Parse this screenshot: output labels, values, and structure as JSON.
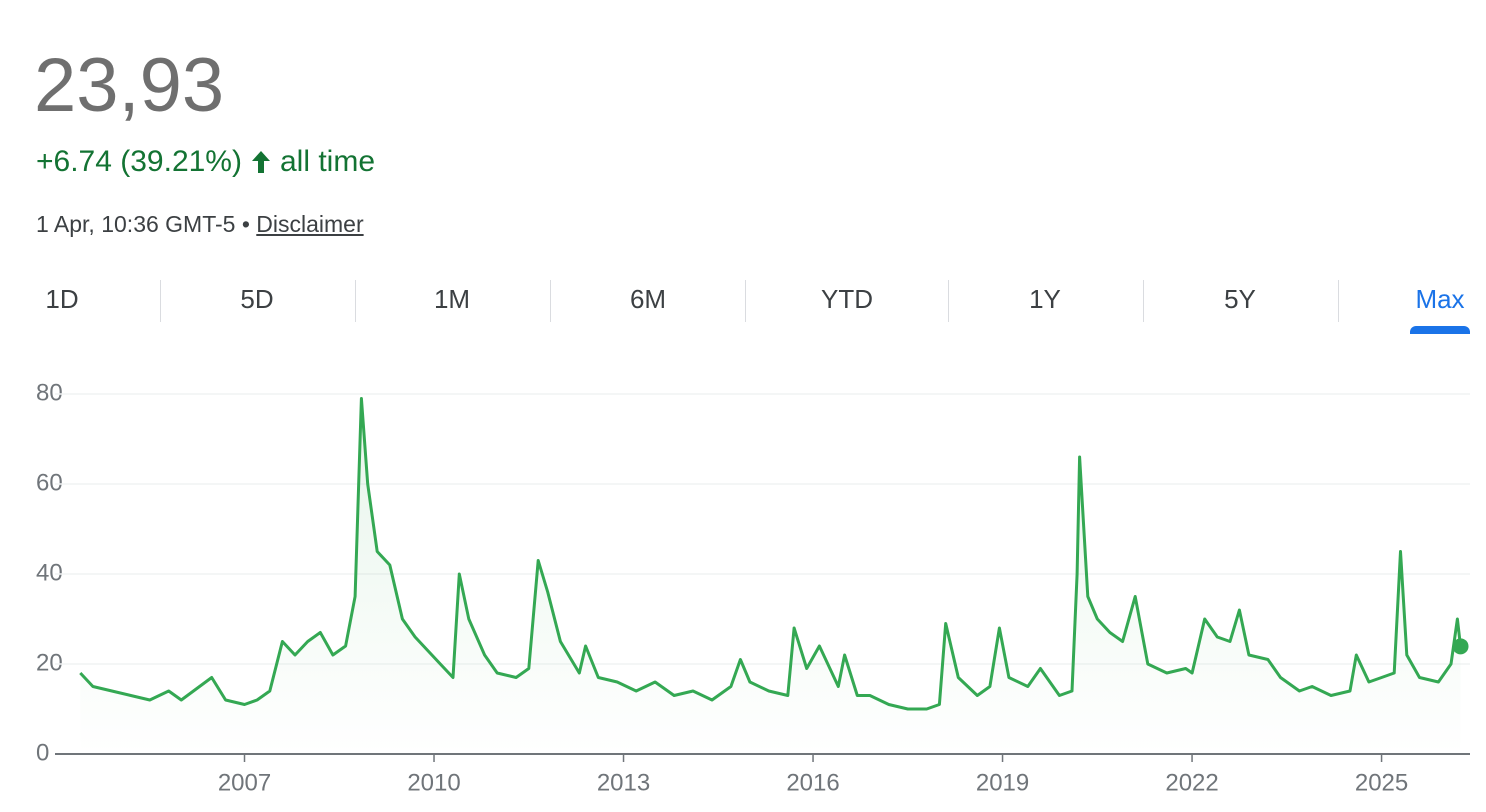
{
  "header": {
    "price": "23,93",
    "change": "+6.74 (39.21%)",
    "period": "all time",
    "timestamp": "1 Apr, 10:36 GMT-5 •",
    "disclaimer": "Disclaimer"
  },
  "tabs": {
    "items": [
      "1D",
      "5D",
      "1M",
      "6M",
      "YTD",
      "1Y",
      "5Y",
      "Max"
    ],
    "active": 7
  },
  "chart_data": {
    "type": "line",
    "color": "#34a853",
    "x": [
      2004.4,
      2004.6,
      2004.9,
      2005.2,
      2005.5,
      2005.8,
      2006.0,
      2006.48,
      2006.7,
      2007.0,
      2007.2,
      2007.4,
      2007.6,
      2007.8,
      2008.0,
      2008.2,
      2008.4,
      2008.6,
      2008.75,
      2008.85,
      2008.95,
      2009.1,
      2009.3,
      2009.5,
      2009.7,
      2009.9,
      2010.1,
      2010.3,
      2010.4,
      2010.55,
      2010.8,
      2011.0,
      2011.3,
      2011.5,
      2011.65,
      2011.8,
      2012.0,
      2012.3,
      2012.4,
      2012.6,
      2012.9,
      2013.2,
      2013.5,
      2013.8,
      2014.1,
      2014.4,
      2014.7,
      2014.85,
      2015.0,
      2015.3,
      2015.6,
      2015.7,
      2015.9,
      2016.1,
      2016.4,
      2016.5,
      2016.7,
      2016.9,
      2017.2,
      2017.5,
      2017.8,
      2018.0,
      2018.1,
      2018.3,
      2018.6,
      2018.8,
      2018.95,
      2019.1,
      2019.4,
      2019.6,
      2019.9,
      2020.1,
      2020.18,
      2020.22,
      2020.35,
      2020.5,
      2020.7,
      2020.9,
      2021.1,
      2021.3,
      2021.6,
      2021.9,
      2022.0,
      2022.2,
      2022.4,
      2022.6,
      2022.75,
      2022.9,
      2023.2,
      2023.4,
      2023.7,
      2023.9,
      2024.2,
      2024.5,
      2024.6,
      2024.8,
      2025.0,
      2025.2,
      2025.3,
      2025.4,
      2025.6,
      2025.9,
      2026.1,
      2026.2,
      2026.25
    ],
    "values": [
      18,
      15,
      14,
      13,
      12,
      14,
      12,
      17,
      12,
      11,
      12,
      14,
      25,
      22,
      25,
      27,
      22,
      24,
      35,
      79,
      60,
      45,
      42,
      30,
      26,
      23,
      20,
      17,
      40,
      30,
      22,
      18,
      17,
      19,
      43,
      36,
      25,
      18,
      24,
      17,
      16,
      14,
      16,
      13,
      14,
      12,
      15,
      21,
      16,
      14,
      13,
      28,
      19,
      24,
      15,
      22,
      13,
      13,
      11,
      10,
      10,
      11,
      29,
      17,
      13,
      15,
      28,
      17,
      15,
      19,
      13,
      14,
      40,
      66,
      35,
      30,
      27,
      25,
      35,
      20,
      18,
      19,
      18,
      30,
      26,
      25,
      32,
      22,
      21,
      17,
      14,
      15,
      13,
      14,
      22,
      16,
      17,
      18,
      45,
      22,
      17,
      16,
      20,
      30,
      23.93
    ],
    "xlim": [
      2004.0,
      2026.4
    ],
    "xticks": [
      2007,
      2010,
      2013,
      2016,
      2019,
      2022,
      2025
    ],
    "ylim": [
      0,
      80
    ],
    "yticks": [
      0,
      20,
      40,
      60,
      80
    ],
    "grid": true
  }
}
